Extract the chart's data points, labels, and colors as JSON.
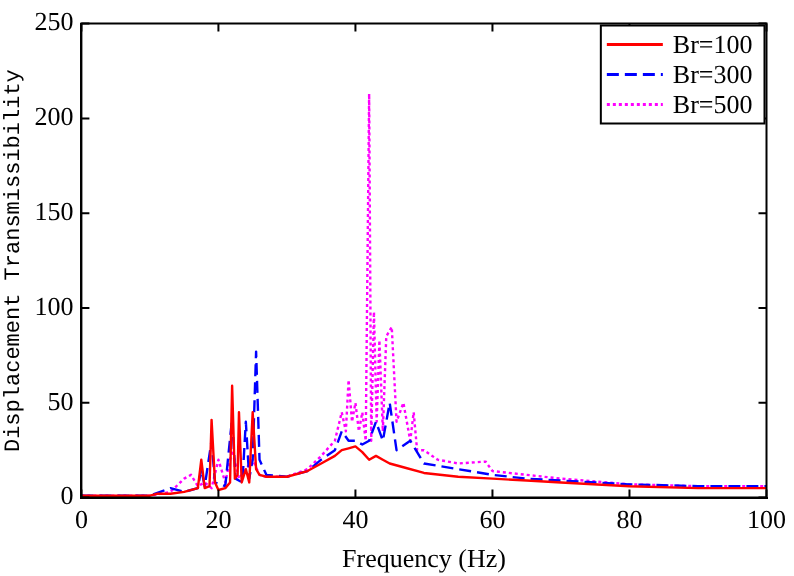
{
  "chart_data": {
    "type": "line",
    "xlabel": "Frequency (Hz)",
    "ylabel": "Displacement Transmissibility",
    "xlim": [
      0,
      100
    ],
    "xticks": [
      0,
      20,
      40,
      60,
      80,
      100
    ],
    "ylim": [
      0,
      250
    ],
    "yticks": [
      0,
      50,
      100,
      150,
      200,
      250
    ],
    "grid": false,
    "legend": "top right",
    "marker": "none",
    "series": [
      {
        "name": "Br=100",
        "color": "#ff0000",
        "line_style": "solid",
        "x": [
          0,
          5,
          10,
          11,
          13,
          15,
          17,
          17.5,
          18,
          18.7,
          19,
          19.5,
          20,
          21,
          21.7,
          22,
          22.4,
          22.8,
          23,
          23.4,
          24,
          24.5,
          25,
          25.5,
          26,
          27,
          30,
          33,
          35,
          37,
          38,
          39,
          40,
          41,
          42,
          43,
          44,
          45,
          47,
          50,
          55,
          60,
          65,
          70,
          80,
          90,
          100
        ],
        "values": [
          1,
          1,
          1,
          2,
          2,
          3,
          5,
          20,
          5,
          6,
          41,
          8,
          4,
          5,
          8,
          59,
          10,
          12,
          45,
          8,
          15,
          8,
          45,
          15,
          12,
          11,
          11,
          14,
          18,
          22,
          25,
          26,
          27,
          24,
          20,
          22,
          20,
          18,
          16,
          13,
          11,
          10,
          9,
          8,
          6,
          5,
          5
        ]
      },
      {
        "name": "Br=300",
        "color": "#0000ff",
        "line_style": "dashed",
        "x": [
          0,
          5,
          10,
          13,
          15,
          17,
          17.5,
          18,
          19,
          19.5,
          21,
          22,
          22.5,
          23.5,
          24,
          24.5,
          25,
          25.5,
          26,
          27,
          30,
          33,
          35,
          37,
          38,
          39,
          40,
          41,
          42,
          43,
          44,
          45,
          46,
          48,
          50,
          55,
          60,
          65,
          70,
          80,
          90,
          100
        ],
        "values": [
          1,
          1,
          1,
          5,
          3,
          5,
          15,
          6,
          30,
          8,
          6,
          42,
          10,
          8,
          40,
          10,
          20,
          77,
          20,
          12,
          11,
          14,
          20,
          25,
          35,
          30,
          30,
          28,
          30,
          40,
          30,
          50,
          25,
          30,
          18,
          15,
          12,
          10,
          9,
          7,
          6,
          6
        ]
      },
      {
        "name": "Br=500",
        "color": "#ff00ff",
        "line_style": "dotted",
        "x": [
          0,
          5,
          10,
          13,
          15,
          16,
          17,
          18,
          19,
          20,
          21,
          22,
          23,
          24,
          25,
          26,
          27,
          30,
          33,
          35,
          37,
          38,
          38.6,
          39,
          39.5,
          40,
          40.5,
          41,
          41.5,
          42,
          42.3,
          42.7,
          43.1,
          43.5,
          44,
          44.5,
          45.3,
          46,
          47,
          48,
          48.5,
          49,
          50,
          52,
          55,
          59,
          60,
          65,
          70,
          80,
          90,
          100
        ],
        "values": [
          1,
          1,
          1,
          3,
          10,
          12,
          6,
          8,
          5,
          20,
          8,
          25,
          10,
          15,
          20,
          12,
          11,
          11,
          15,
          22,
          30,
          45,
          35,
          62,
          40,
          50,
          35,
          45,
          30,
          213,
          30,
          98,
          40,
          83,
          35,
          85,
          90,
          40,
          50,
          30,
          45,
          25,
          25,
          20,
          18,
          19,
          14,
          12,
          10,
          7,
          6,
          6
        ]
      }
    ]
  }
}
